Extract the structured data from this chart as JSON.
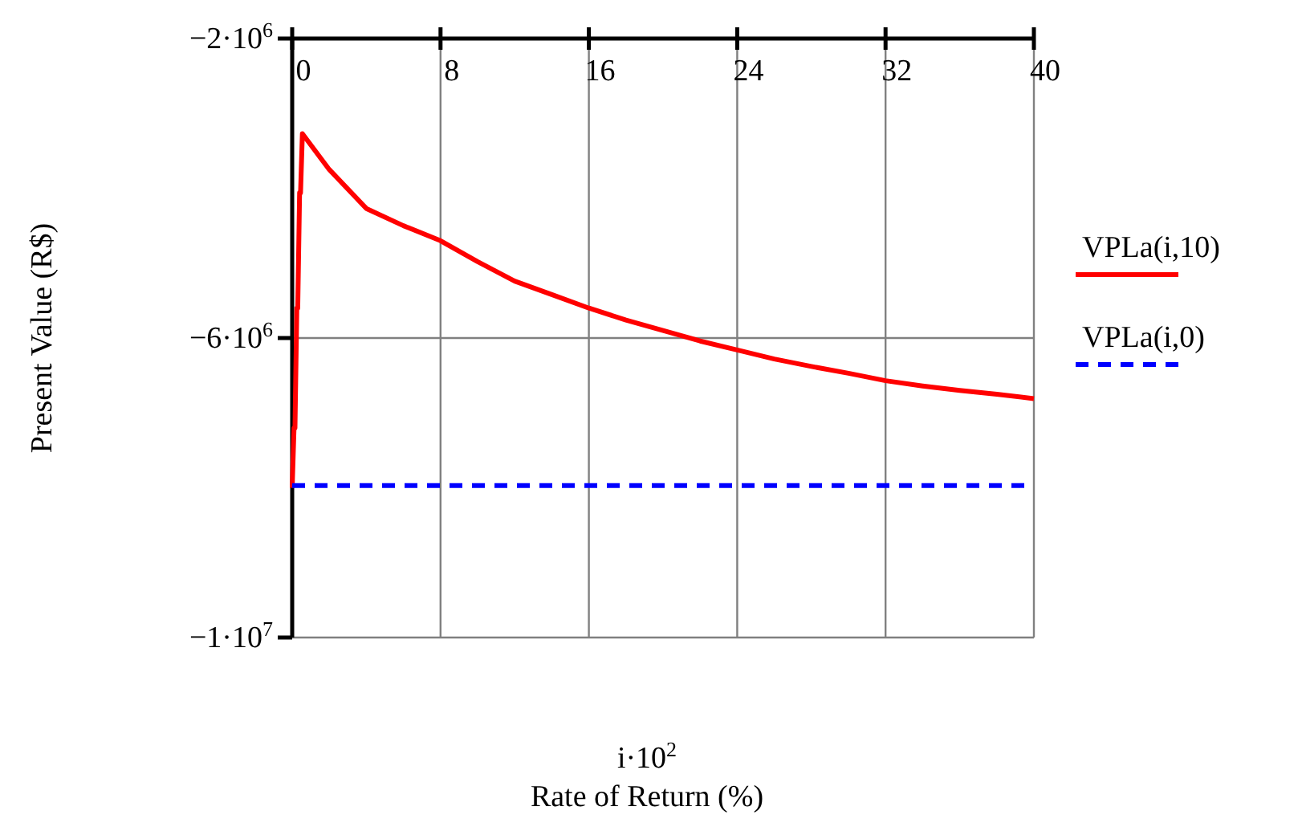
{
  "chart_data": {
    "type": "line",
    "ylabel": "Present Value (R$)",
    "xlabel": "i·10$^{2}$\nRate of Return (%)",
    "xlim": [
      0,
      40
    ],
    "xticks": [
      0,
      8,
      16,
      24,
      32,
      40
    ],
    "ylim": [
      -10000000,
      -2000000
    ],
    "yticks": [
      {
        "value": -2000000,
        "label": "−2·10$^{6}$"
      },
      {
        "value": -6000000,
        "label": "−6·10$^{6}$"
      },
      {
        "value": -10000000,
        "label": "−1·10$^{7}$"
      }
    ],
    "grid": true,
    "legend": "right",
    "marker": "none",
    "series": [
      {
        "name": "VPLa(i,10)",
        "color": "#ff0000",
        "line_style": "solid",
        "x": [
          0,
          0.1,
          0.15,
          0.25,
          0.3,
          0.4,
          0.45,
          0.55,
          2,
          4,
          6,
          8,
          10,
          12,
          14,
          16,
          18,
          20,
          22,
          24,
          26,
          28,
          30,
          32,
          34,
          36,
          38,
          40
        ],
        "values": [
          -8000000,
          -7200000,
          -7200000,
          -5600000,
          -5600000,
          -4060000,
          -4060000,
          -3270000,
          -3750000,
          -4270000,
          -4500000,
          -4700000,
          -4980000,
          -5240000,
          -5420000,
          -5600000,
          -5760000,
          -5900000,
          -6040000,
          -6160000,
          -6280000,
          -6380000,
          -6470000,
          -6570000,
          -6640000,
          -6700000,
          -6750000,
          -6810000
        ]
      },
      {
        "name": "VPLa(i,0)",
        "color": "#0000ff",
        "line_style": "dashed",
        "x": [
          0,
          40
        ],
        "values": [
          -7970000,
          -7970000
        ]
      }
    ]
  }
}
